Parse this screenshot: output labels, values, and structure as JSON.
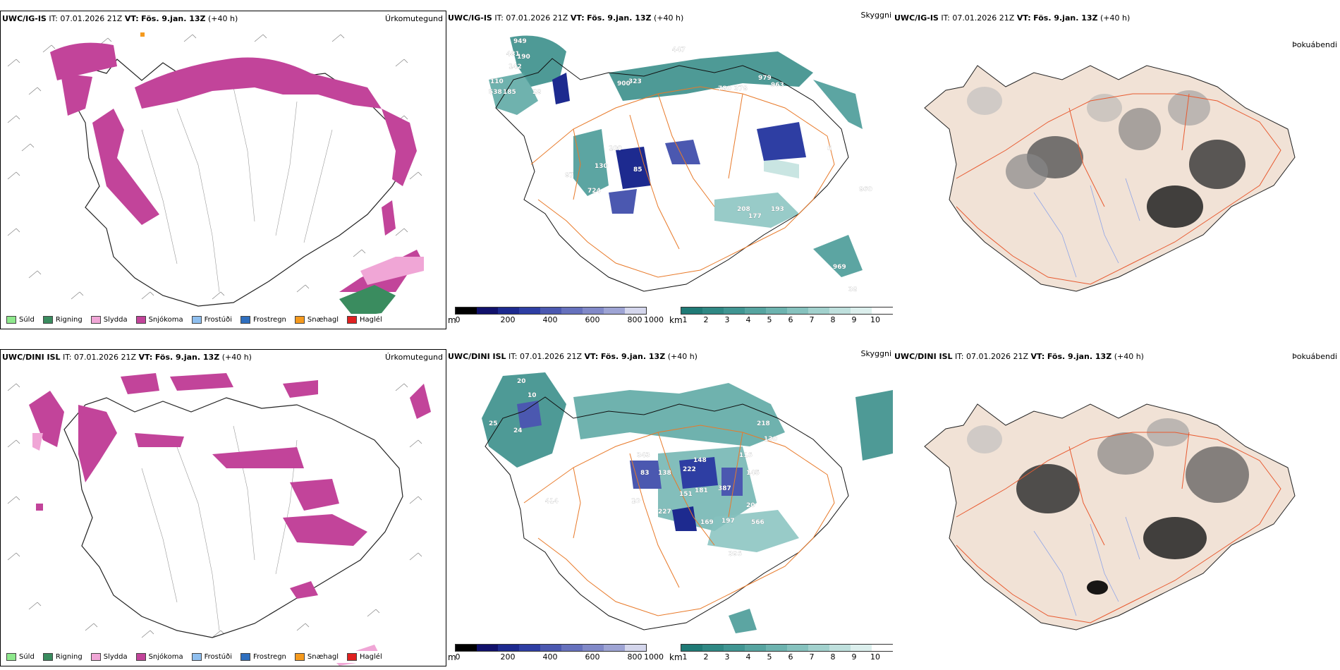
{
  "colors": {
    "snow": "#c2449a",
    "rain": "#3a8c5f",
    "sleet": "#f0a6d6",
    "drizzle": "#8ee88c",
    "freezing_drizzle": "#8fbfef",
    "freezing_rain": "#2f6fbf",
    "snow_pellets": "#f59a1e",
    "hail": "#e02020",
    "land": "#f1e2d6",
    "roads": "#e87a2a",
    "coast": "#000000",
    "lake": "#ffffff"
  },
  "rows": [
    {
      "model": "UWC/IG-IS",
      "it": "IT: 07.01.2026 21Z",
      "vt_label": "VT:",
      "vt": "Fös. 9.jan. 13Z",
      "lead": "(+40 h)"
    },
    {
      "model": "UWC/DINI ISL",
      "it": "IT: 07.01.2026 21Z",
      "vt_label": "VT:",
      "vt": "Fös. 9.jan. 13Z",
      "lead": "(+40 h)"
    }
  ],
  "params": {
    "precip": "Úrkomutegund",
    "visibility": "Skyggni",
    "fog": "Þokuábendi"
  },
  "ptype_legend": [
    {
      "label": "Súld",
      "color": "#8ee88c"
    },
    {
      "label": "Rigning",
      "color": "#3a8c5f"
    },
    {
      "label": "Slydda",
      "color": "#f0a6d6"
    },
    {
      "label": "Snjókoma",
      "color": "#c2449a"
    },
    {
      "label": "Frostúði",
      "color": "#8fbfef"
    },
    {
      "label": "Frostregn",
      "color": "#2f6fbf"
    },
    {
      "label": "Snæhagl",
      "color": "#f59a1e"
    },
    {
      "label": "Haglél",
      "color": "#e02020"
    }
  ],
  "cbar_m": {
    "unit": "m",
    "ticks": [
      "0",
      "200",
      "400",
      "600",
      "800",
      "1000"
    ],
    "colors": [
      "#000000",
      "#11116b",
      "#1d2a8f",
      "#2e3ea3",
      "#4b58b0",
      "#6671bd",
      "#8189c8",
      "#9ea4d4",
      "#b9bde0",
      "#d4d6ec"
    ]
  },
  "cbar_km": {
    "unit": "km",
    "ticks": [
      "1",
      "2",
      "3",
      "4",
      "5",
      "6",
      "7",
      "8",
      "9",
      "10"
    ],
    "colors": [
      "#1f7a76",
      "#2f8884",
      "#409592",
      "#56a4a0",
      "#6db3af",
      "#86c2be",
      "#a2d1cd",
      "#bfe0dd",
      "#dcefed",
      "#ffffff"
    ]
  },
  "cloud_legend": {
    "dark": "0",
    "light": "60"
  },
  "vis_labels_top": [
    "949",
    "481",
    "190",
    "142",
    "110",
    "538",
    "185",
    "28",
    "900",
    "323",
    "447",
    "780",
    "378",
    "979",
    "963",
    "100",
    "130",
    "85",
    "724",
    "87",
    "208",
    "177",
    "193",
    "969",
    "860",
    "38",
    "6"
  ],
  "vis_labels_bottom": [
    "20",
    "10",
    "25",
    "24",
    "343",
    "83",
    "138",
    "222",
    "148",
    "116",
    "145",
    "130",
    "218",
    "151",
    "181",
    "387",
    "20",
    "169",
    "197",
    "566",
    "414",
    "396",
    "10",
    "227"
  ]
}
